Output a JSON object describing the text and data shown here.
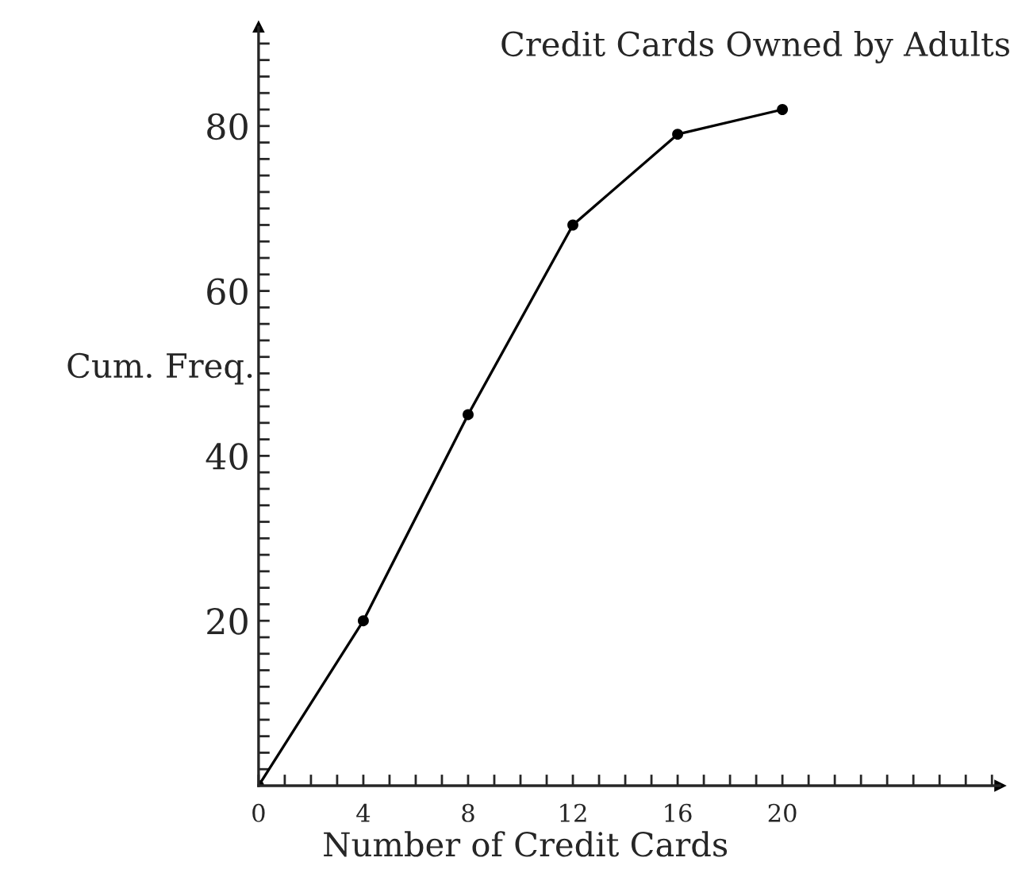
{
  "chart_data": {
    "type": "line",
    "title": "Credit Cards Owned by Adults",
    "xlabel": "Number of Credit Cards",
    "ylabel": "Cum. Freq.",
    "x": [
      0,
      4,
      8,
      12,
      16,
      20
    ],
    "series": [
      {
        "color": "#000000",
        "values": [
          0,
          20,
          45,
          68,
          79,
          82
        ]
      }
    ],
    "marker": "circle",
    "line_style": "solid",
    "grid": false,
    "legend": false,
    "xlim": [
      0,
      28.3
    ],
    "ylim": [
      0,
      92
    ],
    "xticks": [
      0,
      {
        "value": 1,
        "label": null
      },
      {
        "value": 2,
        "label": null
      },
      {
        "value": 3,
        "label": null
      },
      4,
      {
        "value": 5,
        "label": null
      },
      {
        "value": 6,
        "label": null
      },
      {
        "value": 7,
        "label": null
      },
      8,
      {
        "value": 9,
        "label": null
      },
      {
        "value": 10,
        "label": null
      },
      {
        "value": 11,
        "label": null
      },
      12,
      {
        "value": 13,
        "label": null
      },
      {
        "value": 14,
        "label": null
      },
      {
        "value": 15,
        "label": null
      },
      16,
      {
        "value": 17,
        "label": null
      },
      {
        "value": 18,
        "label": null
      },
      {
        "value": 19,
        "label": null
      },
      20,
      {
        "value": 21,
        "label": null
      },
      {
        "value": 22,
        "label": null
      },
      {
        "value": 23,
        "label": null
      },
      {
        "value": 24,
        "label": null
      },
      {
        "value": 25,
        "label": null
      },
      {
        "value": 26,
        "label": null
      },
      {
        "value": 27,
        "label": null
      },
      {
        "value": 28,
        "label": null
      }
    ],
    "yticks": [
      {
        "value": 2,
        "label": null
      },
      {
        "value": 4,
        "label": null
      },
      {
        "value": 6,
        "label": null
      },
      {
        "value": 8,
        "label": null
      },
      {
        "value": 10,
        "label": null
      },
      {
        "value": 12,
        "label": null
      },
      {
        "value": 14,
        "label": null
      },
      {
        "value": 16,
        "label": null
      },
      {
        "value": 18,
        "label": null
      },
      20,
      {
        "value": 22,
        "label": null
      },
      {
        "value": 24,
        "label": null
      },
      {
        "value": 26,
        "label": null
      },
      {
        "value": 28,
        "label": null
      },
      {
        "value": 30,
        "label": null
      },
      {
        "value": 32,
        "label": null
      },
      {
        "value": 34,
        "label": null
      },
      {
        "value": 36,
        "label": null
      },
      {
        "value": 38,
        "label": null
      },
      40,
      {
        "value": 42,
        "label": null
      },
      {
        "value": 44,
        "label": null
      },
      {
        "value": 46,
        "label": null
      },
      {
        "value": 48,
        "label": null
      },
      {
        "value": 50,
        "label": null
      },
      {
        "value": 52,
        "label": null
      },
      {
        "value": 54,
        "label": null
      },
      {
        "value": 56,
        "label": null
      },
      {
        "value": 58,
        "label": null
      },
      60,
      {
        "value": 62,
        "label": null
      },
      {
        "value": 64,
        "label": null
      },
      {
        "value": 66,
        "label": null
      },
      {
        "value": 68,
        "label": null
      },
      {
        "value": 70,
        "label": null
      },
      {
        "value": 72,
        "label": null
      },
      {
        "value": 74,
        "label": null
      },
      {
        "value": 76,
        "label": null
      },
      {
        "value": 78,
        "label": null
      },
      80,
      {
        "value": 82,
        "label": null
      },
      {
        "value": 84,
        "label": null
      },
      {
        "value": 86,
        "label": null
      },
      {
        "value": 88,
        "label": null
      },
      {
        "value": 90,
        "label": null
      }
    ]
  }
}
